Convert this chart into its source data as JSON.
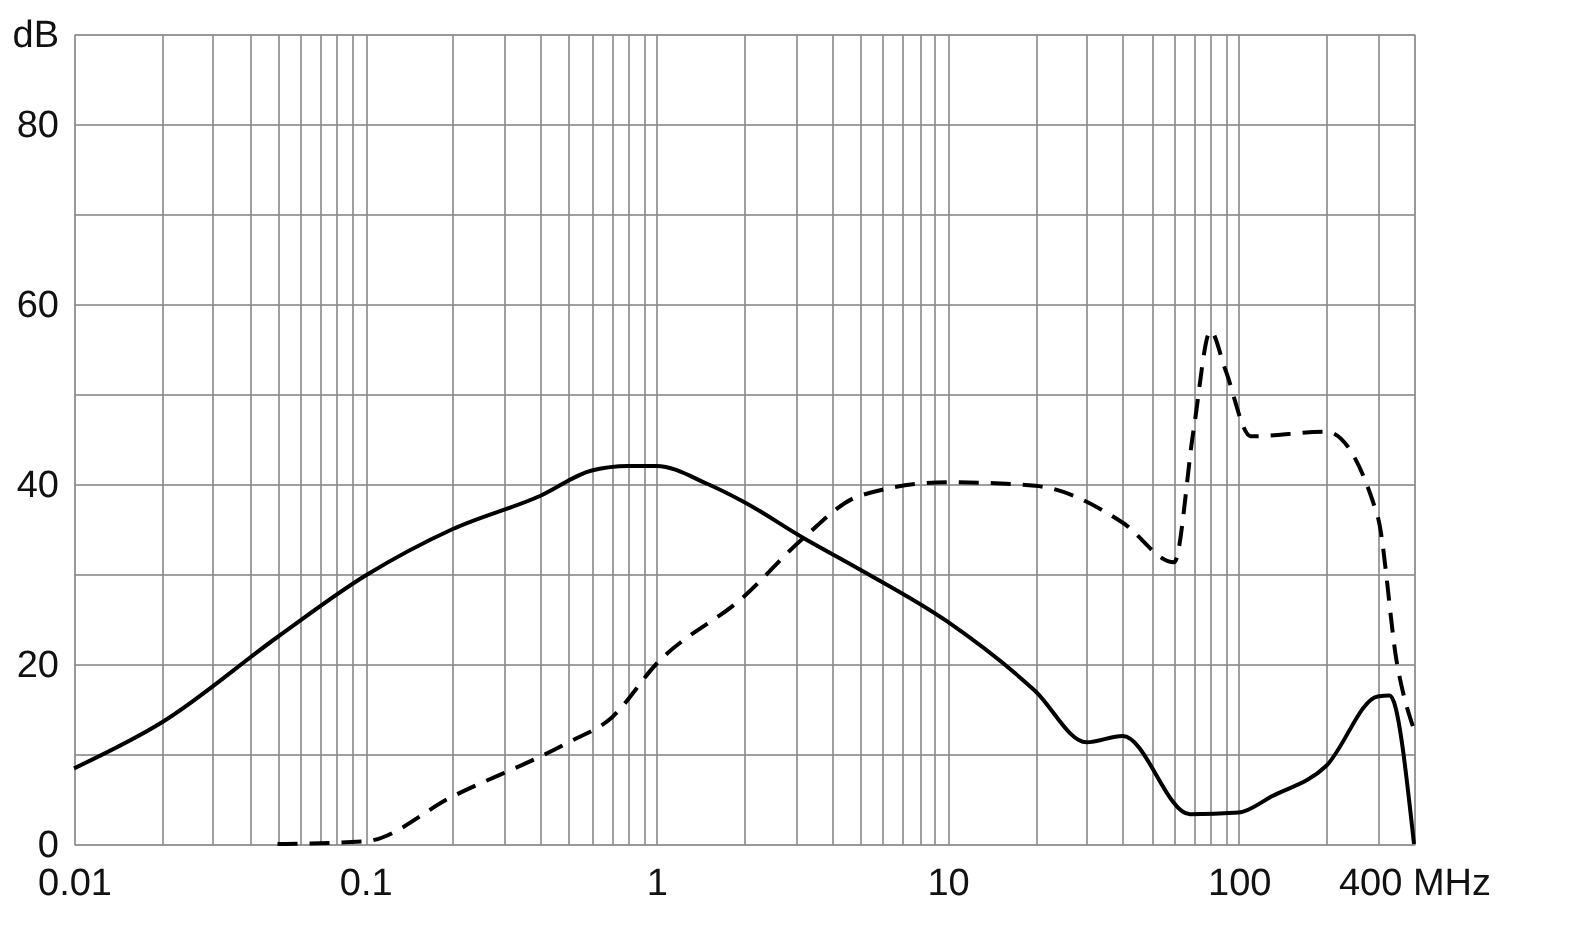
{
  "chart_data": {
    "type": "line",
    "log": "x",
    "grid": true,
    "marker": "none",
    "x": [
      0.01,
      0.02,
      0.05,
      0.1,
      0.2,
      0.4,
      0.6,
      0.8,
      1,
      1.5,
      2,
      3.2,
      5,
      10,
      20,
      30,
      40,
      68,
      100,
      130,
      200,
      300,
      330,
      400
    ],
    "series": [
      {
        "color": "#000000",
        "line_style": "solid",
        "values": [
          8.4,
          13.5,
          23,
          29.8,
          35,
          38.7,
          41.5,
          42,
          42,
          40,
          38,
          34,
          30.5,
          24.7,
          17,
          11.3,
          12,
          3.3,
          3.5,
          5.3,
          8.7,
          16.4,
          16.5,
          0
        ]
      },
      {
        "color": "#000000",
        "line_style": "dashed",
        "x": [
          0.05,
          0.1,
          0.2,
          0.5,
          0.7,
          1,
          2,
          3.2,
          5,
          10,
          20,
          40,
          60,
          70,
          80,
          90,
          110,
          200,
          300,
          350,
          400
        ],
        "values": [
          0,
          0.3,
          5.3,
          11.3,
          14,
          20,
          27.5,
          34,
          38.7,
          40.2,
          39.8,
          35.7,
          31.3,
          46,
          57,
          52.7,
          45.3,
          45.8,
          36.4,
          20,
          12.7
        ]
      }
    ],
    "xlim": [
      0.01,
      400
    ],
    "xticks": [
      0.01,
      {
        "value": 0.02,
        "label": null
      },
      {
        "value": 0.03,
        "label": null
      },
      {
        "value": 0.04,
        "label": null
      },
      {
        "value": 0.05,
        "label": null
      },
      {
        "value": 0.06,
        "label": null
      },
      {
        "value": 0.07,
        "label": null
      },
      {
        "value": 0.08,
        "label": null
      },
      {
        "value": 0.09,
        "label": null
      },
      0.1,
      {
        "value": 0.2,
        "label": null
      },
      {
        "value": 0.3,
        "label": null
      },
      {
        "value": 0.4,
        "label": null
      },
      {
        "value": 0.5,
        "label": null
      },
      {
        "value": 0.6,
        "label": null
      },
      {
        "value": 0.7,
        "label": null
      },
      {
        "value": 0.8,
        "label": null
      },
      {
        "value": 0.9,
        "label": null
      },
      1,
      {
        "value": 2,
        "label": null
      },
      {
        "value": 3,
        "label": null
      },
      {
        "value": 4,
        "label": null
      },
      {
        "value": 5,
        "label": null
      },
      {
        "value": 6,
        "label": null
      },
      {
        "value": 7,
        "label": null
      },
      {
        "value": 8,
        "label": null
      },
      {
        "value": 9,
        "label": null
      },
      10,
      {
        "value": 20,
        "label": null
      },
      {
        "value": 30,
        "label": null
      },
      {
        "value": 40,
        "label": null
      },
      {
        "value": 50,
        "label": null
      },
      {
        "value": 60,
        "label": null
      },
      {
        "value": 70,
        "label": null
      },
      {
        "value": 80,
        "label": null
      },
      {
        "value": 90,
        "label": null
      },
      100,
      {
        "value": 200,
        "label": null
      },
      {
        "value": 300,
        "label": null
      },
      {
        "value": 400,
        "label": "400 MHz"
      }
    ],
    "ylim": [
      0,
      90
    ],
    "yticks": [
      0,
      {
        "value": 10,
        "label": null
      },
      20,
      {
        "value": 30,
        "label": null
      },
      40,
      {
        "value": 50,
        "label": null
      },
      60,
      {
        "value": 70,
        "label": null
      },
      80,
      {
        "value": 90,
        "label": "dB"
      }
    ]
  }
}
